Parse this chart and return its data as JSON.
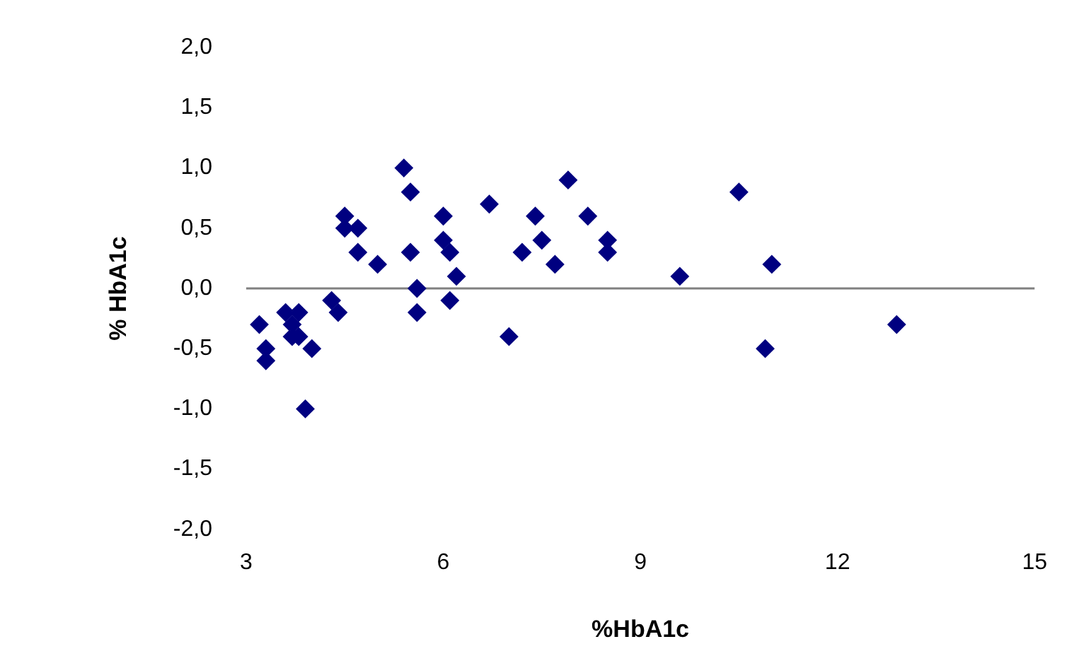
{
  "chart_data": {
    "type": "scatter",
    "xlabel": "%HbA1c",
    "ylabel": "% HbA1c",
    "xlim": [
      3,
      15
    ],
    "xticks": [
      3,
      6,
      9,
      12,
      15
    ],
    "ylim": [
      -2,
      2
    ],
    "yticks": [
      {
        "value": -2,
        "label": "-2,0"
      },
      {
        "value": -1.5,
        "label": "-1,5"
      },
      {
        "value": -1,
        "label": "-1,0"
      },
      {
        "value": -0.5,
        "label": "-0,5"
      },
      {
        "value": 0,
        "label": "0,0"
      },
      {
        "value": 0.5,
        "label": "0,5"
      },
      {
        "value": 1,
        "label": "1,0"
      },
      {
        "value": 1.5,
        "label": "1,5"
      },
      {
        "value": 2,
        "label": "2,0"
      }
    ],
    "ref_lines": [
      {
        "axis": "y",
        "value": 0,
        "color": "#808080"
      }
    ],
    "marker": "diamond",
    "grid": false,
    "legend": false,
    "series": [
      {
        "color": "#000080",
        "x": [
          5.4,
          5.5,
          4.5,
          4.5,
          4.7,
          6.0,
          6.7,
          4.7,
          5.0,
          5.5,
          6.0,
          6.1,
          6.2,
          5.6,
          6.1,
          5.6,
          7.0,
          4.3,
          4.4,
          3.2,
          3.6,
          3.8,
          3.7,
          3.7,
          3.8,
          3.3,
          3.3,
          4.0,
          3.9,
          7.9,
          7.4,
          8.2,
          7.5,
          7.2,
          7.7,
          8.5,
          8.5,
          9.6,
          10.5,
          11.0,
          10.9,
          12.9
        ],
        "values": [
          1.0,
          0.8,
          0.6,
          0.5,
          0.5,
          0.6,
          0.7,
          0.3,
          0.2,
          0.3,
          0.4,
          0.3,
          0.1,
          0.0,
          -0.1,
          -0.2,
          -0.4,
          -0.1,
          -0.2,
          -0.3,
          -0.2,
          -0.2,
          -0.3,
          -0.4,
          -0.4,
          -0.5,
          -0.6,
          -0.5,
          -1.0,
          0.9,
          0.6,
          0.6,
          0.4,
          0.3,
          0.2,
          0.4,
          0.3,
          0.1,
          0.8,
          0.2,
          -0.5,
          -0.3
        ]
      }
    ]
  }
}
